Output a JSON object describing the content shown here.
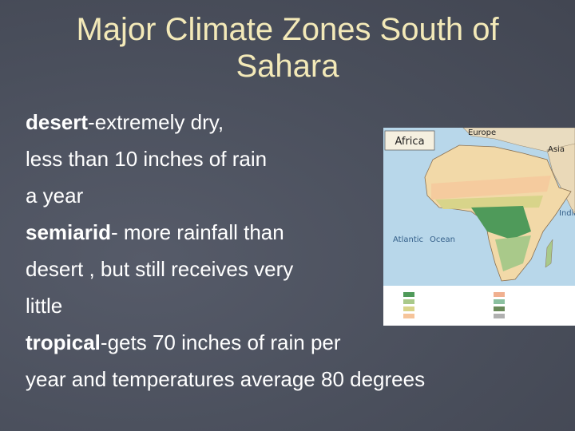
{
  "slide": {
    "title_lines": [
      "Major Climate Zones South of",
      "Sahara"
    ],
    "body_lines": [
      {
        "bold": "desert",
        "text": "-extremely dry,"
      },
      {
        "text": "less than 10 inches of rain"
      },
      {
        "text": "a year"
      },
      {
        "bold": "semiarid",
        "text": "- more rainfall than"
      },
      {
        "text": "desert , but still receives very"
      },
      {
        "text": "little"
      },
      {
        "bold": "tropical",
        "text": "-gets 70 inches of rain per"
      },
      {
        "text": "year and temperatures average 80 degrees"
      }
    ],
    "map": {
      "title": "Africa",
      "labels": [
        "Europe",
        "Asia",
        "Atlantic",
        "Ocean",
        "India"
      ]
    }
  }
}
